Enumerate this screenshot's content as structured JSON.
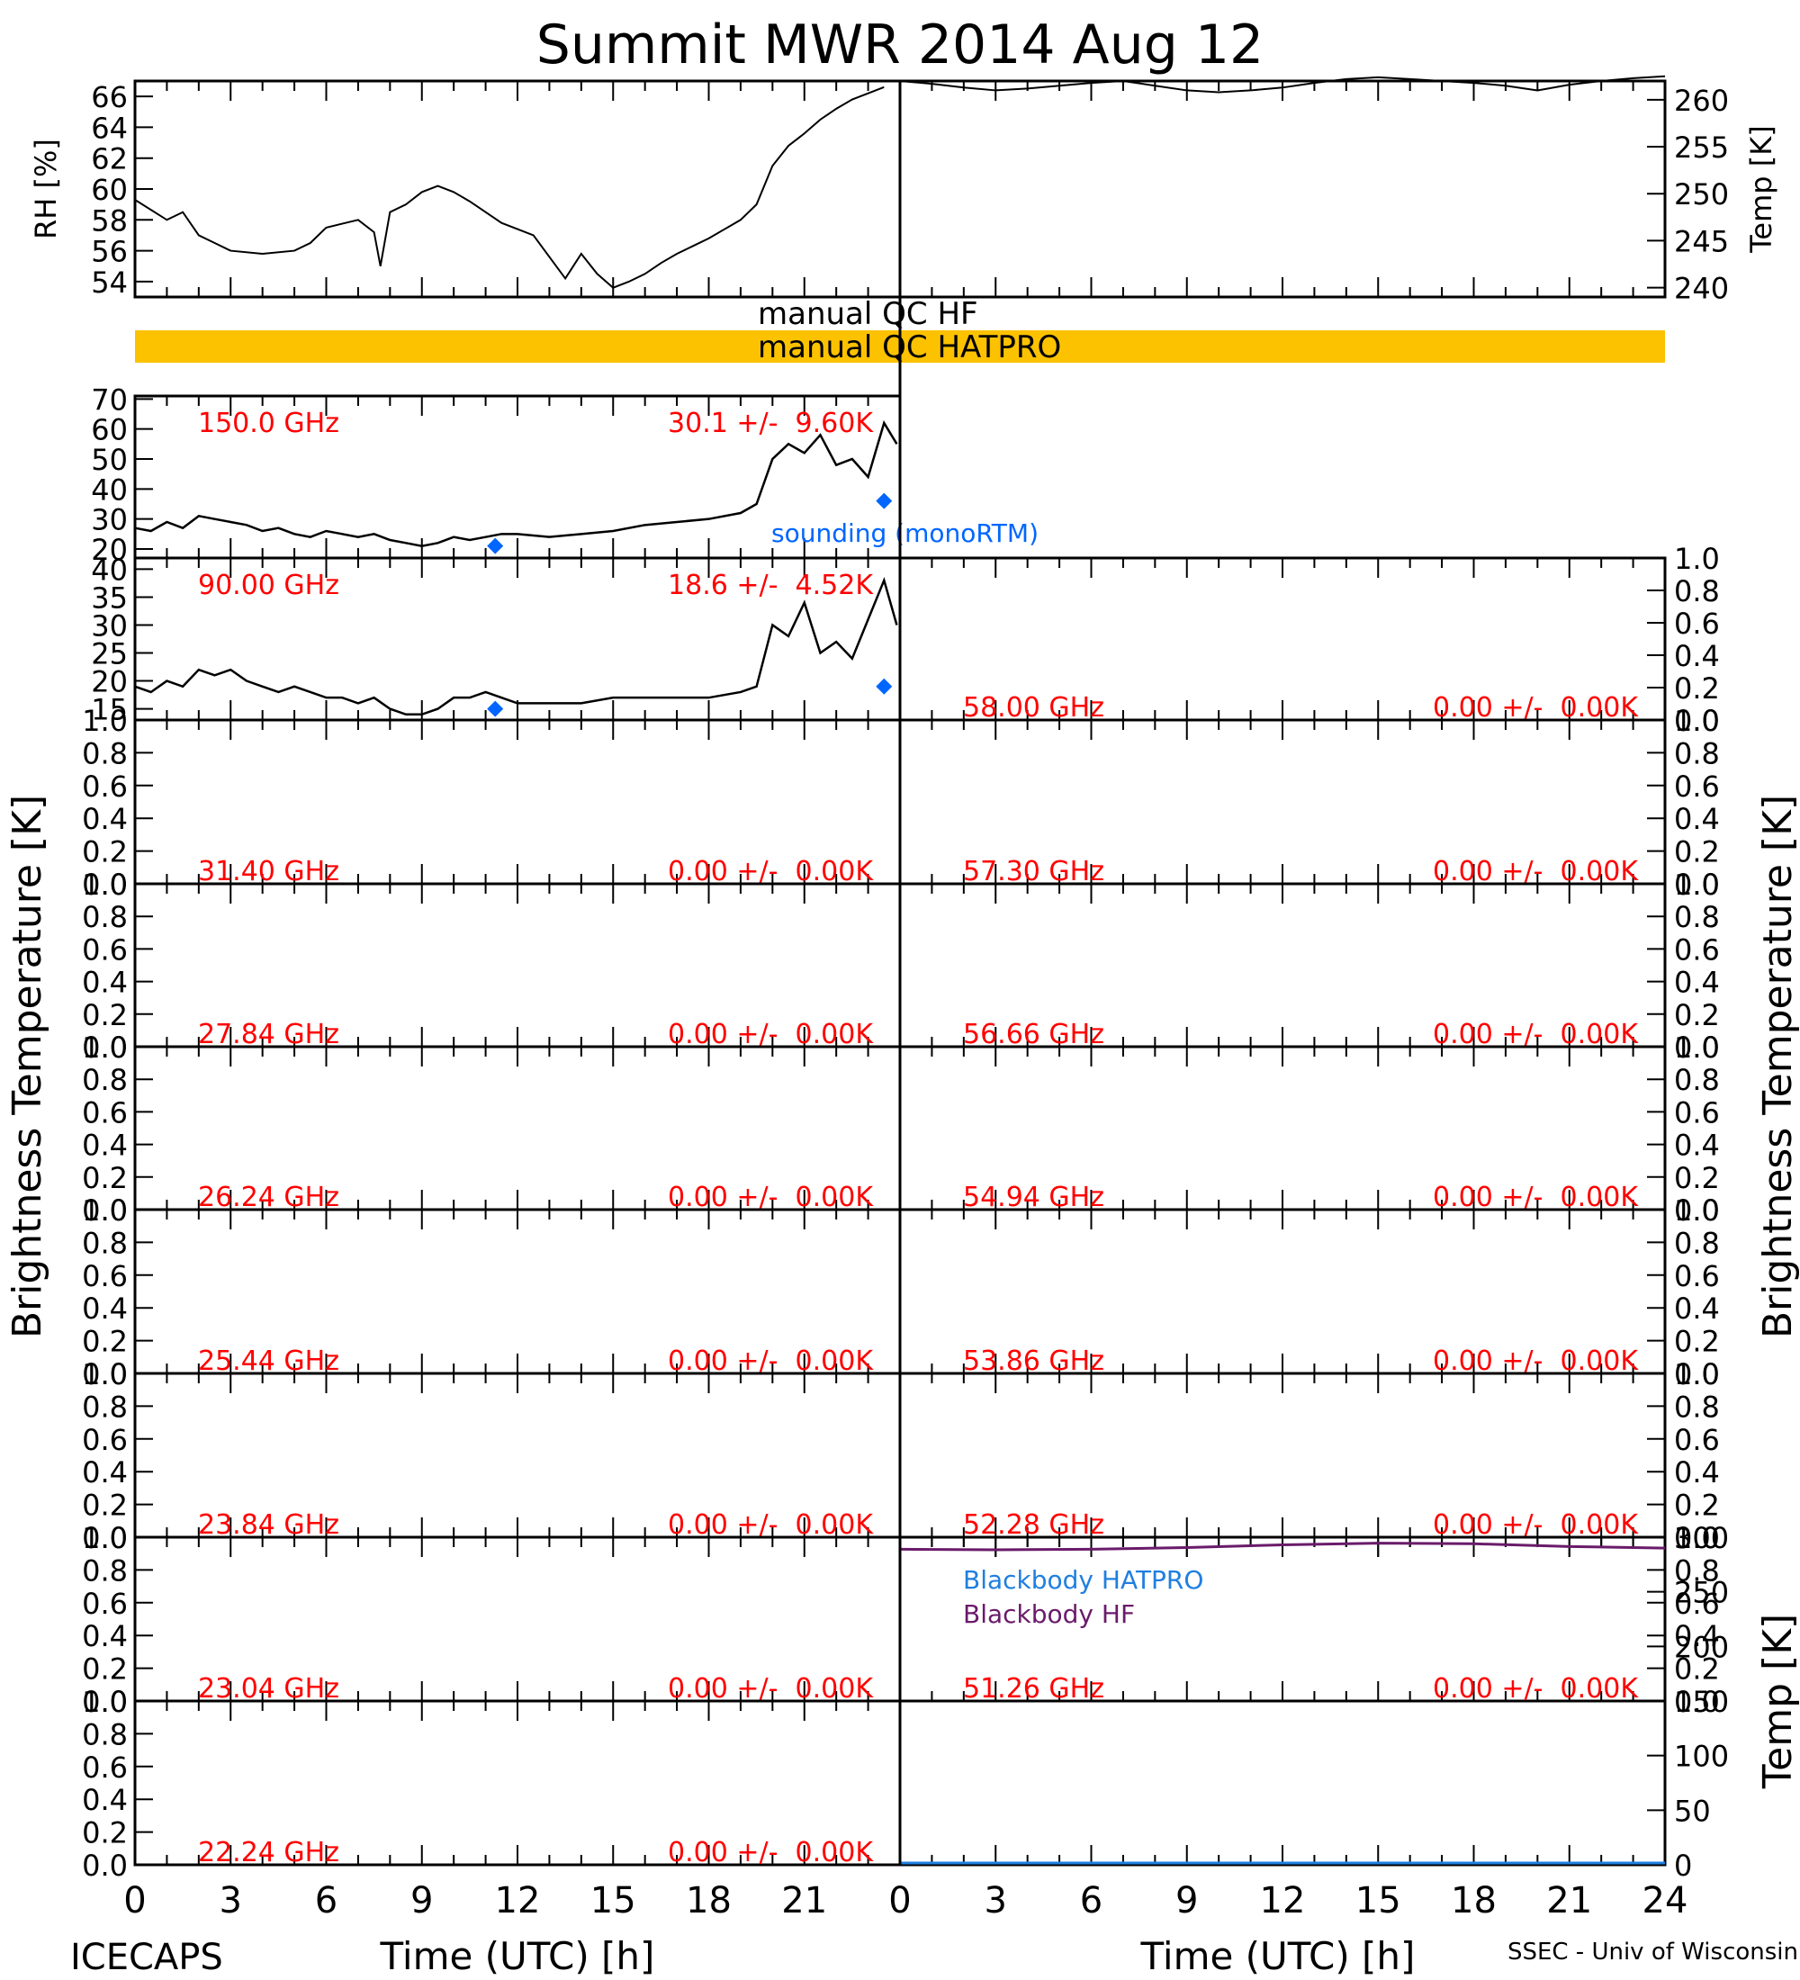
{
  "title": "Summit MWR 2014 Aug 12",
  "footer": {
    "left": "ICECAPS",
    "right": "SSEC - Univ of Wisconsin"
  },
  "colors": {
    "axes": "#000000",
    "data_line": "#000000",
    "channel_label": "#ff0000",
    "sounding": "#0066ff",
    "qc_bar": "#fcc200",
    "blackbody_hatpro": "#1f7fe0",
    "blackbody_hf": "#6a1b6a"
  },
  "qc": {
    "hf_label": "manual QC HF",
    "hatpro_label": "manual QC HATPRO"
  },
  "x_axis": {
    "label": "Time (UTC) [h]",
    "left_ticks": [
      "0",
      "3",
      "6",
      "9",
      "12",
      "15",
      "18",
      "21"
    ],
    "right_ticks": [
      "0",
      "3",
      "6",
      "9",
      "12",
      "15",
      "18",
      "21",
      "24"
    ]
  },
  "y_labels": {
    "rh": "RH [%]",
    "temp": "Temp [K]",
    "brightness": "Brightness Temperature [K]",
    "blackbody": "Temp [K]"
  },
  "sounding_label": "sounding (monoRTM)",
  "blackbody_legend": [
    "Blackbody HATPRO",
    "Blackbody HF"
  ],
  "chart_data": [
    {
      "type": "line",
      "title": "",
      "ylabel": "RH [%]",
      "xlim": [
        0,
        24
      ],
      "ylim": [
        53,
        67
      ],
      "yticks": [
        "54",
        "56",
        "58",
        "60",
        "62",
        "64",
        "66"
      ],
      "series": [
        {
          "x": [
            0,
            1,
            1.5,
            2,
            2.5,
            3,
            4,
            5,
            5.5,
            6,
            7,
            7.5,
            7.7,
            8,
            8.5,
            9,
            9.5,
            10,
            10.5,
            11,
            11.5,
            12,
            12.5,
            13,
            13.5,
            14,
            14.5,
            15,
            15.5,
            16,
            16.5,
            17,
            17.5,
            18,
            18.5,
            19,
            19.5,
            20,
            20.5,
            21,
            21.5,
            22,
            22.5,
            23,
            23.5
          ],
          "y": [
            59.3,
            58,
            58.5,
            57,
            56.5,
            56,
            55.8,
            56,
            56.5,
            57.5,
            58,
            57.2,
            55,
            58.5,
            59,
            59.8,
            60.2,
            59.8,
            59.2,
            58.5,
            57.8,
            57.4,
            57,
            55.6,
            54.2,
            55.8,
            54.5,
            53.6,
            54,
            54.5,
            55.2,
            55.8,
            56.3,
            56.8,
            57.4,
            58,
            59,
            61.5,
            62.8,
            63.6,
            64.5,
            65.2,
            65.8,
            66.2,
            66.6
          ]
        }
      ]
    },
    {
      "type": "line",
      "title": "",
      "ylabel": "Temp [K]",
      "xlim": [
        0,
        24
      ],
      "ylim": [
        239,
        262
      ],
      "yticks": [
        "240",
        "245",
        "250",
        "255",
        "260"
      ],
      "series": [
        {
          "x": [
            0,
            1,
            2,
            3,
            4,
            5,
            6,
            7,
            8,
            9,
            10,
            11,
            12,
            13,
            14,
            15,
            16,
            17,
            18,
            19,
            20,
            21,
            22,
            23,
            24
          ],
          "y": [
            262,
            261.7,
            261.3,
            261,
            261.2,
            261.5,
            261.8,
            262,
            261.5,
            261,
            260.8,
            261,
            261.3,
            261.8,
            262.2,
            262.4,
            262.2,
            262,
            261.8,
            261.5,
            261,
            261.6,
            262,
            262.3,
            262.5
          ]
        }
      ]
    },
    {
      "type": "line",
      "channel": "150.0 GHz",
      "stat": "30.1 +/-  9.60K",
      "xlim": [
        0,
        24
      ],
      "ylim": [
        17,
        71
      ],
      "yticks": [
        "20",
        "30",
        "40",
        "50",
        "60",
        "70"
      ],
      "series": [
        {
          "x": [
            0,
            0.5,
            1,
            1.5,
            2,
            2.5,
            3,
            3.5,
            4,
            4.5,
            5,
            5.5,
            6,
            6.5,
            7,
            7.5,
            8,
            8.5,
            9,
            9.5,
            10,
            10.5,
            11,
            11.5,
            12,
            13,
            14,
            15,
            16,
            17,
            18,
            19,
            19.5,
            20,
            20.5,
            21,
            21.5,
            22,
            22.5,
            23,
            23.5,
            23.9
          ],
          "y": [
            27,
            26,
            29,
            27,
            31,
            30,
            29,
            28,
            26,
            27,
            25,
            24,
            26,
            25,
            24,
            25,
            23,
            22,
            21,
            22,
            24,
            23,
            24,
            25,
            25,
            24,
            25,
            26,
            28,
            29,
            30,
            32,
            35,
            50,
            55,
            52,
            58,
            48,
            50,
            44,
            62,
            55
          ]
        }
      ],
      "sounding": [
        {
          "x": 11.3,
          "y": 21
        },
        {
          "x": 23.5,
          "y": 36
        }
      ]
    },
    {
      "type": "line",
      "channel": "90.00 GHz",
      "stat": "18.6 +/-  4.52K",
      "xlim": [
        0,
        24
      ],
      "ylim": [
        13,
        42
      ],
      "yticks": [
        "15",
        "20",
        "25",
        "30",
        "35",
        "40"
      ],
      "series": [
        {
          "x": [
            0,
            0.5,
            1,
            1.5,
            2,
            2.5,
            3,
            3.5,
            4,
            4.5,
            5,
            5.5,
            6,
            6.5,
            7,
            7.5,
            8,
            8.5,
            9,
            9.5,
            10,
            10.5,
            11,
            11.5,
            12,
            13,
            14,
            15,
            16,
            17,
            18,
            19,
            19.5,
            20,
            20.5,
            21,
            21.5,
            22,
            22.5,
            23,
            23.5,
            23.9
          ],
          "y": [
            19,
            18,
            20,
            19,
            22,
            21,
            22,
            20,
            19,
            18,
            19,
            18,
            17,
            17,
            16,
            17,
            15,
            14,
            14,
            15,
            17,
            17,
            18,
            17,
            16,
            16,
            16,
            17,
            17,
            17,
            17,
            18,
            19,
            30,
            28,
            34,
            25,
            27,
            24,
            31,
            38,
            30
          ]
        }
      ],
      "sounding": [
        {
          "x": 11.3,
          "y": 15
        },
        {
          "x": 23.5,
          "y": 19
        }
      ]
    },
    {
      "type": "line",
      "channel": "31.40 GHz",
      "stat": "0.00 +/-  0.00K",
      "ylim": [
        0,
        1
      ],
      "series": []
    },
    {
      "type": "line",
      "channel": "27.84 GHz",
      "stat": "0.00 +/-  0.00K",
      "ylim": [
        0,
        1
      ],
      "series": []
    },
    {
      "type": "line",
      "channel": "26.24 GHz",
      "stat": "0.00 +/-  0.00K",
      "ylim": [
        0,
        1
      ],
      "series": []
    },
    {
      "type": "line",
      "channel": "25.44 GHz",
      "stat": "0.00 +/-  0.00K",
      "ylim": [
        0,
        1
      ],
      "series": []
    },
    {
      "type": "line",
      "channel": "23.84 GHz",
      "stat": "0.00 +/-  0.00K",
      "ylim": [
        0,
        1
      ],
      "series": []
    },
    {
      "type": "line",
      "channel": "23.04 GHz",
      "stat": "0.00 +/-  0.00K",
      "ylim": [
        0,
        1
      ],
      "series": []
    },
    {
      "type": "line",
      "channel": "22.24 GHz",
      "stat": "0.00 +/-  0.00K",
      "ylim": [
        0,
        1
      ],
      "series": []
    },
    {
      "type": "line",
      "channel": "58.00 GHz",
      "stat": "0.00 +/-  0.00K",
      "ylim": [
        0,
        1
      ],
      "series": []
    },
    {
      "type": "line",
      "channel": "57.30 GHz",
      "stat": "0.00 +/-  0.00K",
      "ylim": [
        0,
        1
      ],
      "series": []
    },
    {
      "type": "line",
      "channel": "56.66 GHz",
      "stat": "0.00 +/-  0.00K",
      "ylim": [
        0,
        1
      ],
      "series": []
    },
    {
      "type": "line",
      "channel": "54.94 GHz",
      "stat": "0.00 +/-  0.00K",
      "ylim": [
        0,
        1
      ],
      "series": []
    },
    {
      "type": "line",
      "channel": "53.86 GHz",
      "stat": "0.00 +/-  0.00K",
      "ylim": [
        0,
        1
      ],
      "series": []
    },
    {
      "type": "line",
      "channel": "52.28 GHz",
      "stat": "0.00 +/-  0.00K",
      "ylim": [
        0,
        1
      ],
      "series": []
    },
    {
      "type": "line",
      "channel": "51.26 GHz",
      "stat": "0.00 +/-  0.00K",
      "ylim": [
        0,
        1
      ],
      "series": []
    },
    {
      "type": "line",
      "ylabel": "Temp [K]",
      "xlim": [
        0,
        24
      ],
      "ylim": [
        0,
        300
      ],
      "yticks": [
        "0",
        "50",
        "100",
        "150",
        "200",
        "250",
        "300"
      ],
      "series": [
        {
          "name": "Blackbody HATPRO",
          "x": [
            0,
            24
          ],
          "y": [
            0,
            0
          ]
        },
        {
          "name": "Blackbody HF",
          "x": [
            0,
            3,
            6,
            9,
            12,
            15,
            18,
            21,
            24
          ],
          "y": [
            289,
            288.5,
            289,
            290.5,
            293,
            294.5,
            294,
            291.5,
            290
          ]
        }
      ]
    }
  ]
}
